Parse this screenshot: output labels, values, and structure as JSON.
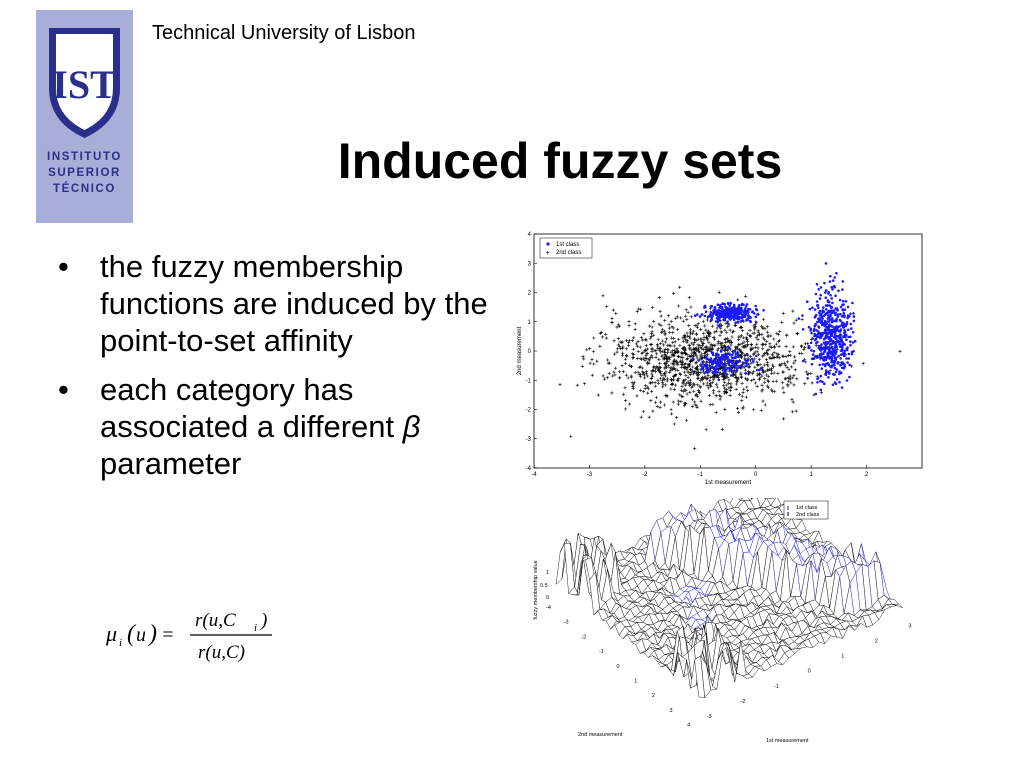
{
  "header": {
    "university": "Technical University of Lisbon",
    "logo": {
      "line1": "INSTITUTO",
      "line2": "SUPERIOR",
      "line3": "TÉCNICO",
      "mark": "IST"
    }
  },
  "slide": {
    "title": "Induced fuzzy sets",
    "bullets": [
      {
        "text": "the fuzzy membership functions are induced by the point-to-set affinity"
      },
      {
        "text": "each category has associated a different",
        "symbol": "β",
        "tail": " parameter"
      }
    ],
    "formula": {
      "lhs_mu": "μ",
      "lhs_sub": "i",
      "lhs_arg": "u",
      "numerator": "r(u,C",
      "num_sub": "i",
      "numerator_close": ")",
      "denominator": "r(u,C)"
    }
  },
  "chart_data": [
    {
      "type": "scatter",
      "xlabel": "1st measurement",
      "ylabel": "2nd measurement",
      "xlim": [
        -4,
        3
      ],
      "ylim": [
        -4,
        4
      ],
      "xticks": [
        "-4",
        "-3",
        "-2",
        "-1",
        "0",
        "1",
        "2"
      ],
      "yticks": [
        "-4",
        "-3",
        "-2",
        "-1",
        "0",
        "1",
        "2",
        "3",
        "4"
      ],
      "legend": [
        "1st class",
        "2nd class"
      ],
      "legend_position": "top-left",
      "series": [
        {
          "name": "1st class",
          "marker": "dot",
          "color": "#1a1aff",
          "clusters": [
            {
              "cx": -0.45,
              "cy": 1.3,
              "sx": 0.25,
              "sy": 0.15,
              "n": 260
            },
            {
              "cx": -0.55,
              "cy": -0.4,
              "sx": 0.22,
              "sy": 0.2,
              "n": 160
            },
            {
              "cx": 1.35,
              "cy": 0.5,
              "sx": 0.18,
              "sy": 0.75,
              "n": 520
            }
          ]
        },
        {
          "name": "2nd class",
          "marker": "plus",
          "color": "#000000",
          "clusters": [
            {
              "cx": -0.9,
              "cy": -0.3,
              "sx": 0.9,
              "sy": 0.75,
              "n": 1300
            }
          ]
        }
      ]
    },
    {
      "type": "surface",
      "zlabel": "fuzzy membership value",
      "xlabel": "1st measurement",
      "ylabel": "2nd measurement",
      "zticks": [
        "0",
        "0.5",
        "1"
      ],
      "x_axis_ticks": [
        "-3",
        "-2",
        "-1",
        "0",
        "1",
        "2",
        "3"
      ],
      "y_axis_ticks": [
        "-4",
        "-3",
        "-2",
        "-1",
        "0",
        "1",
        "2",
        "3",
        "4"
      ],
      "x_front_ticks": [
        "4",
        "-3",
        "-2",
        "-1",
        "0",
        "1"
      ],
      "legend": [
        "1st class",
        "2nd class"
      ]
    }
  ],
  "colors": {
    "logo_bg": "#a9aed9",
    "logo_dark": "#2a2f8a",
    "class1": "#1a1aff",
    "class2": "#000000"
  }
}
